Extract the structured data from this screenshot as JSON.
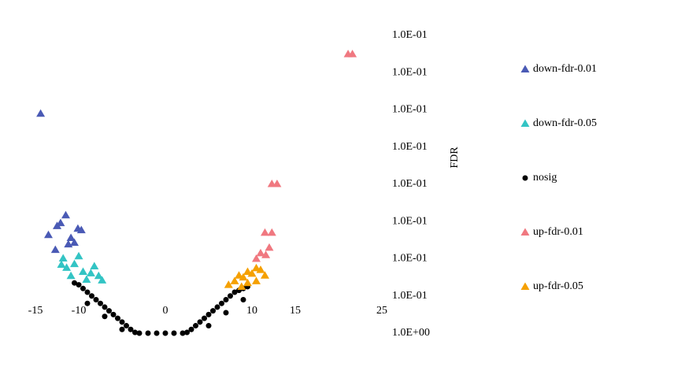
{
  "chart_data": {
    "type": "scatter",
    "xlim": [
      -15,
      25
    ],
    "xticks": [
      -15,
      -10,
      0,
      10,
      15,
      25
    ],
    "ylim": [
      0,
      8
    ],
    "yticks": [
      {
        "value": 0,
        "label": "1.0E+00"
      },
      {
        "value": 1,
        "label": "1.0E-01"
      },
      {
        "value": 2,
        "label": "1.0E-01"
      },
      {
        "value": 3,
        "label": "1.0E-01"
      },
      {
        "value": 4,
        "label": "1.0E-01"
      },
      {
        "value": 5,
        "label": "1.0E-01"
      },
      {
        "value": 6,
        "label": "1.0E-01"
      },
      {
        "value": 7,
        "label": "1.0E-01"
      },
      {
        "value": 8,
        "label": "1.0E-01"
      }
    ],
    "y_label": "FDR",
    "legend": "right",
    "series": [
      {
        "name": "down-fdr-0.01",
        "color": "#4a5ab5",
        "marker": "triangle",
        "x": [
          -14.4,
          -11.5,
          -12.1,
          -10.1,
          -13.5,
          -10.9,
          -12.5,
          -9.7,
          -12.7,
          -10.5,
          -11.2
        ],
        "y": [
          5.9,
          3.17,
          2.96,
          2.81,
          2.64,
          2.56,
          2.88,
          2.77,
          2.24,
          2.43,
          2.39
        ]
      },
      {
        "name": "down-fdr-0.05",
        "color": "#33c4c4",
        "marker": "triangle",
        "x": [
          -11.8,
          -11.4,
          -10.5,
          -9.5,
          -8.2,
          -7.7,
          -10.9,
          -9.1,
          -7.3,
          -10,
          -8.6,
          -12
        ],
        "y": [
          2.01,
          1.76,
          1.86,
          1.65,
          1.8,
          1.54,
          1.54,
          1.44,
          1.42,
          2.07,
          1.61,
          1.84
        ]
      },
      {
        "name": "nosig",
        "color": "#000000",
        "marker": "dot",
        "x": [
          -10.5,
          -10,
          -9.5,
          -9,
          -8.5,
          -8,
          -7.5,
          -7,
          -6.5,
          -6,
          -5.5,
          -5,
          -4.5,
          -4,
          -3.5,
          -9,
          -7,
          -5,
          -3,
          -2,
          -1,
          0,
          1,
          2,
          2.5,
          3,
          3.5,
          4,
          4.5,
          5,
          5.5,
          6,
          6.5,
          7,
          7.5,
          8,
          8.5,
          9,
          9.5,
          5,
          7,
          9
        ],
        "y": [
          1.35,
          1.3,
          1.2,
          1.1,
          1.0,
          0.9,
          0.8,
          0.7,
          0.6,
          0.5,
          0.4,
          0.3,
          0.2,
          0.1,
          0.02,
          0.8,
          0.45,
          0.1,
          0,
          0,
          0,
          0,
          0,
          0,
          0.02,
          0.1,
          0.2,
          0.3,
          0.4,
          0.5,
          0.6,
          0.7,
          0.8,
          0.9,
          1.0,
          1.1,
          1.15,
          1.2,
          1.25,
          0.2,
          0.55,
          0.9
        ]
      },
      {
        "name": "up-fdr-0.01",
        "color": "#f07880",
        "marker": "triangle",
        "x": [
          21.1,
          21.6,
          12.3,
          12.9,
          11.5,
          12.3,
          12,
          11,
          10.5,
          11.6
        ],
        "y": [
          7.5,
          7.5,
          4.01,
          4.01,
          2.7,
          2.7,
          2.3,
          2.15,
          2.0,
          2.1
        ]
      },
      {
        "name": "up-fdr-0.05",
        "color": "#f5a000",
        "marker": "triangle",
        "x": [
          7.3,
          8,
          8.5,
          9,
          9.5,
          10,
          10.5,
          11,
          11.5,
          9.5,
          10.5,
          8.8
        ],
        "y": [
          1.3,
          1.4,
          1.55,
          1.5,
          1.65,
          1.6,
          1.75,
          1.7,
          1.55,
          1.35,
          1.4,
          1.25
        ]
      }
    ]
  }
}
